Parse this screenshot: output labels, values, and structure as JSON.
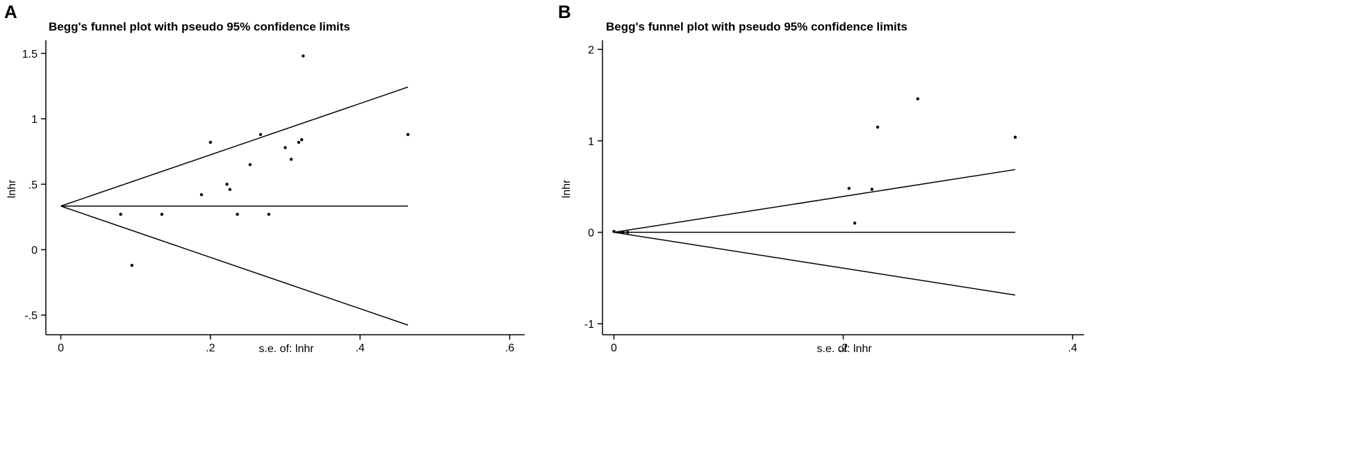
{
  "panels": [
    "A",
    "B"
  ],
  "chart_data": [
    {
      "type": "scatter",
      "panel": "A",
      "title": "Begg's funnel plot with pseudo 95% confidence limits",
      "xlabel": "s.e. of: lnhr",
      "ylabel": "lnhr",
      "xlim": [
        -0.02,
        0.62
      ],
      "ylim": [
        -0.65,
        1.6
      ],
      "xticks": [
        0,
        0.2,
        0.4,
        0.6
      ],
      "xtick_labels": [
        "0",
        ".2",
        ".4",
        ".6"
      ],
      "yticks": [
        -0.5,
        0,
        0.5,
        1,
        1.5
      ],
      "ytick_labels": [
        "-.5",
        "0",
        ".5",
        "1",
        "1.5"
      ],
      "grid": false,
      "pooled_estimate": 0.333,
      "funnel_se_max": 0.464,
      "points": [
        {
          "x": 0.08,
          "y": 0.27
        },
        {
          "x": 0.095,
          "y": -0.12
        },
        {
          "x": 0.135,
          "y": 0.27
        },
        {
          "x": 0.188,
          "y": 0.42
        },
        {
          "x": 0.2,
          "y": 0.82
        },
        {
          "x": 0.222,
          "y": 0.5
        },
        {
          "x": 0.226,
          "y": 0.46
        },
        {
          "x": 0.236,
          "y": 0.27
        },
        {
          "x": 0.253,
          "y": 0.65
        },
        {
          "x": 0.267,
          "y": 0.88
        },
        {
          "x": 0.278,
          "y": 0.27
        },
        {
          "x": 0.3,
          "y": 0.78
        },
        {
          "x": 0.308,
          "y": 0.69
        },
        {
          "x": 0.318,
          "y": 0.82
        },
        {
          "x": 0.322,
          "y": 0.84
        },
        {
          "x": 0.324,
          "y": 1.48
        },
        {
          "x": 0.464,
          "y": 0.88
        }
      ]
    },
    {
      "type": "scatter",
      "panel": "B",
      "title": "Begg's funnel plot with pseudo 95% confidence limits",
      "xlabel": "s.e. of: lnhr",
      "ylabel": "lnhr",
      "xlim": [
        -0.01,
        0.41
      ],
      "ylim": [
        -1.12,
        2.1
      ],
      "xticks": [
        0,
        0.2,
        0.4
      ],
      "xtick_labels": [
        "0",
        ".2",
        ".4"
      ],
      "yticks": [
        -1,
        0,
        1,
        2
      ],
      "ytick_labels": [
        "-1",
        "0",
        "1",
        "2"
      ],
      "grid": false,
      "pooled_estimate": 0.0,
      "funnel_se_max": 0.35,
      "points": [
        {
          "x": 0.0,
          "y": 0.01
        },
        {
          "x": 0.008,
          "y": 0.0
        },
        {
          "x": 0.012,
          "y": 0.0
        },
        {
          "x": 0.205,
          "y": 0.48
        },
        {
          "x": 0.21,
          "y": 0.1
        },
        {
          "x": 0.225,
          "y": 0.47
        },
        {
          "x": 0.23,
          "y": 1.15
        },
        {
          "x": 0.265,
          "y": 1.46
        },
        {
          "x": 0.35,
          "y": 1.04
        }
      ]
    }
  ]
}
